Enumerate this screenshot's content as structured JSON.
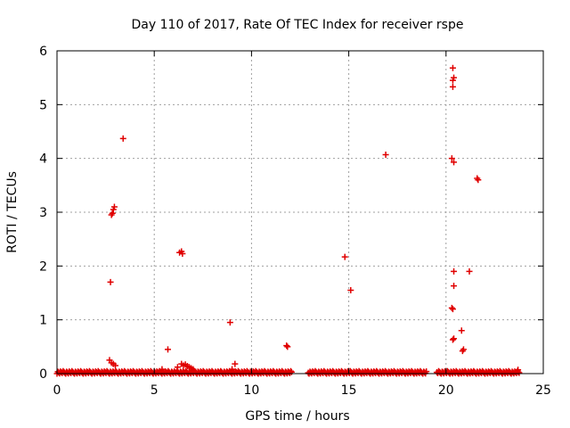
{
  "chart_data": {
    "type": "scatter",
    "title": "Day 110 of 2017, Rate Of TEC Index for receiver rspe",
    "xlabel": "GPS time / hours",
    "ylabel": "ROTI / TECUs",
    "xlim": [
      0,
      25
    ],
    "ylim": [
      0,
      6
    ],
    "x_ticks": [
      0,
      5,
      10,
      15,
      20,
      25
    ],
    "y_ticks": [
      0,
      1,
      2,
      3,
      4,
      5,
      6
    ],
    "grid": true,
    "legend": "none",
    "marker": "+",
    "marker_color": "#e00000",
    "baseline_band": {
      "x_start": 0.0,
      "x_end": 23.8,
      "y_min": 0.0,
      "y_max": 0.05,
      "gaps": [
        [
          12.1,
          12.9
        ],
        [
          19.0,
          19.5
        ]
      ]
    },
    "series": [
      {
        "points": [
          [
            2.7,
            0.25
          ],
          [
            2.75,
            1.7
          ],
          [
            2.8,
            0.2
          ],
          [
            2.8,
            2.95
          ],
          [
            2.85,
            2.98
          ],
          [
            2.9,
            3.05
          ],
          [
            2.95,
            3.1
          ],
          [
            2.9,
            0.18
          ],
          [
            3.0,
            0.15
          ],
          [
            3.4,
            4.37
          ],
          [
            5.7,
            0.45
          ],
          [
            5.4,
            0.08
          ],
          [
            6.3,
            2.25
          ],
          [
            6.4,
            2.27
          ],
          [
            6.45,
            2.23
          ],
          [
            6.2,
            0.12
          ],
          [
            6.4,
            0.18
          ],
          [
            6.5,
            0.15
          ],
          [
            6.6,
            0.17
          ],
          [
            6.7,
            0.14
          ],
          [
            6.8,
            0.12
          ],
          [
            6.9,
            0.1
          ],
          [
            7.0,
            0.08
          ],
          [
            8.9,
            0.95
          ],
          [
            9.0,
            0.08
          ],
          [
            9.15,
            0.18
          ],
          [
            11.8,
            0.52
          ],
          [
            11.85,
            0.5
          ],
          [
            14.8,
            2.17
          ],
          [
            15.1,
            1.55
          ],
          [
            16.9,
            4.07
          ],
          [
            20.3,
            4.0
          ],
          [
            20.35,
            5.68
          ],
          [
            20.4,
            5.5
          ],
          [
            20.35,
            5.45
          ],
          [
            20.35,
            5.33
          ],
          [
            20.4,
            3.93
          ],
          [
            20.4,
            1.9
          ],
          [
            20.4,
            1.63
          ],
          [
            20.3,
            1.22
          ],
          [
            20.35,
            1.2
          ],
          [
            20.4,
            0.65
          ],
          [
            20.35,
            0.63
          ],
          [
            20.8,
            0.8
          ],
          [
            20.9,
            0.45
          ],
          [
            20.85,
            0.42
          ],
          [
            21.2,
            1.9
          ],
          [
            21.6,
            3.63
          ],
          [
            21.65,
            3.6
          ],
          [
            23.7,
            0.07
          ]
        ]
      }
    ]
  }
}
